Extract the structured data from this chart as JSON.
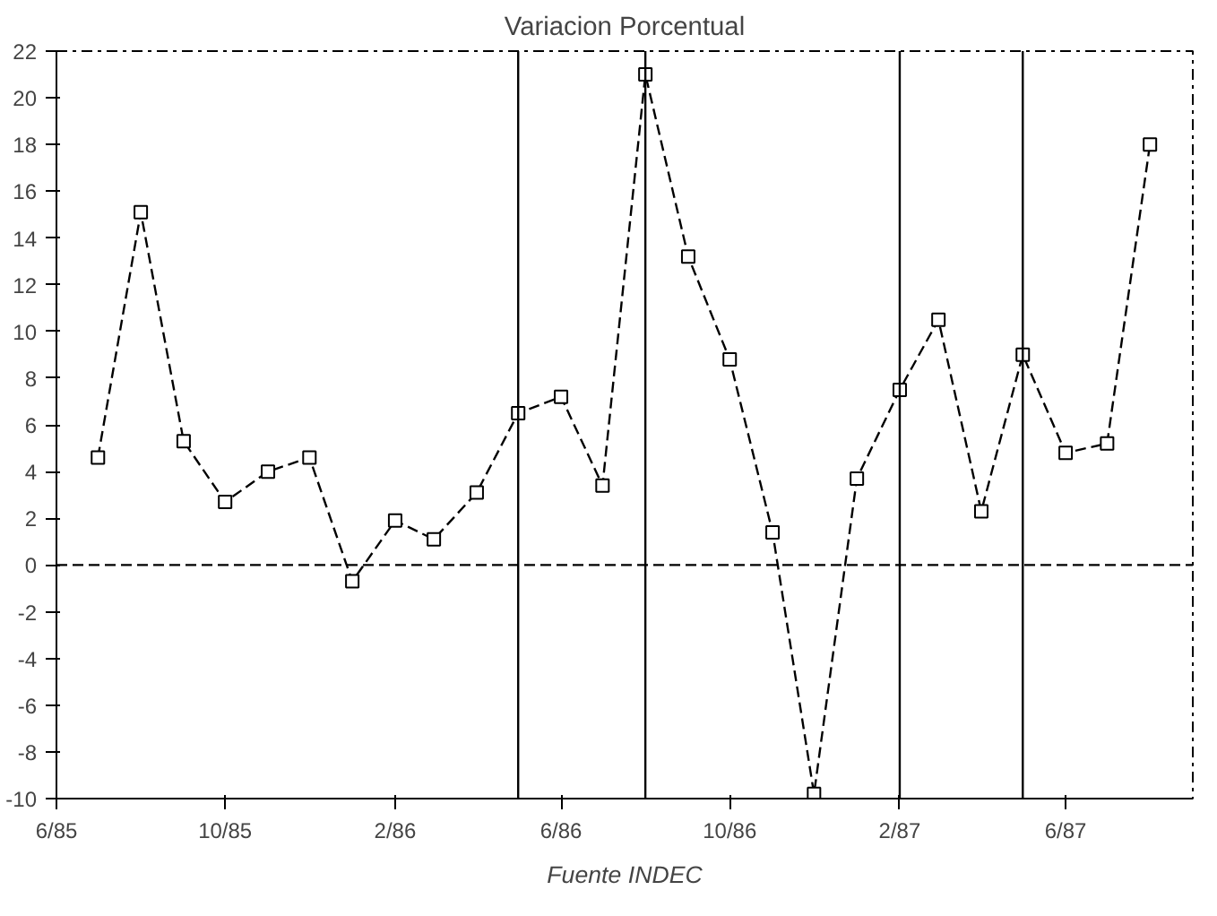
{
  "chart_data": {
    "type": "line",
    "title": "Variacion Porcentual",
    "x": [
      "1985-07",
      "1985-08",
      "1985-09",
      "1985-10",
      "1985-11",
      "1985-12",
      "1986-01",
      "1986-02",
      "1986-03",
      "1986-04",
      "1986-05",
      "1986-06",
      "1986-07",
      "1986-08",
      "1986-09",
      "1986-10",
      "1986-11",
      "1986-12",
      "1987-01",
      "1987-02",
      "1987-03",
      "1987-04",
      "1987-05",
      "1987-06",
      "1987-07",
      "1987-08"
    ],
    "series": [
      {
        "color": "#000000",
        "values": [
          4.6,
          15.1,
          5.3,
          2.7,
          4.0,
          4.6,
          -0.7,
          1.9,
          1.1,
          3.1,
          6.5,
          7.2,
          3.4,
          21.0,
          13.2,
          8.8,
          1.4,
          -9.8,
          3.7,
          7.5,
          10.5,
          2.3,
          9.0,
          4.8,
          5.2,
          18.0
        ]
      }
    ],
    "xlim": [
      "1985-06",
      "1987-09"
    ],
    "xticks": [
      {
        "value": "1985-06",
        "label": "6/85"
      },
      {
        "value": "1985-10",
        "label": "10/85"
      },
      {
        "value": "1986-02",
        "label": "2/86"
      },
      {
        "value": "1986-06",
        "label": "6/86"
      },
      {
        "value": "1986-10",
        "label": "10/86"
      },
      {
        "value": "1987-02",
        "label": "2/87"
      },
      {
        "value": "1987-06",
        "label": "6/87"
      }
    ],
    "ylim": [
      -10,
      22
    ],
    "yticks": [
      -10,
      -8,
      -6,
      -4,
      -2,
      0,
      2,
      4,
      6,
      8,
      10,
      12,
      14,
      16,
      18,
      20,
      22
    ],
    "ref_lines": [
      {
        "axis": "y",
        "value": 0,
        "line_style": "dashed"
      },
      {
        "axis": "x",
        "value": "1986-05",
        "line_style": "solid"
      },
      {
        "axis": "x",
        "value": "1986-08",
        "line_style": "solid"
      },
      {
        "axis": "x",
        "value": "1987-02",
        "line_style": "solid"
      },
      {
        "axis": "x",
        "value": "1987-05",
        "line_style": "solid"
      }
    ],
    "annotations": [
      "Fuente INDEC"
    ],
    "grid": false,
    "marker": "square",
    "line_style": "dashed"
  }
}
